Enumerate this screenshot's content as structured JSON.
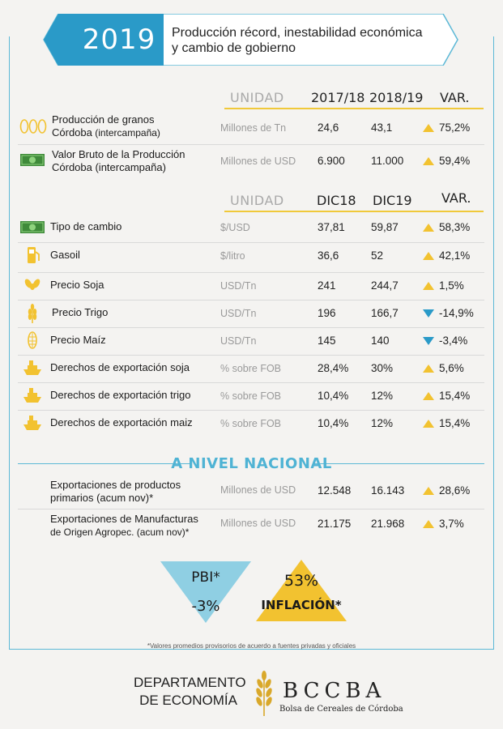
{
  "header": {
    "year": "2019",
    "title_line1": "Producción récord, inestabilidad económica",
    "title_line2": "y cambio de gobierno"
  },
  "table1": {
    "col_unit": "UNIDAD",
    "col_a": "2017/18",
    "col_b": "2018/19",
    "col_var": "VAR.",
    "rows": [
      {
        "icon": "grain-icon",
        "label1": "Producción de granos",
        "label2": "Córdoba",
        "label2_small": " (intercampaña)",
        "unit": "Millones de Tn",
        "a": "24,6",
        "b": "43,1",
        "dir": "up",
        "var": "75,2%"
      },
      {
        "icon": "money-icon",
        "label1": "Valor Bruto de la Producción",
        "label2": "Córdoba (intercampaña)",
        "label2_small": "",
        "unit": "Millones de USD",
        "a": "6.900",
        "b": "11.000",
        "dir": "up",
        "var": "59,4%"
      }
    ]
  },
  "table2": {
    "col_unit": "UNIDAD",
    "col_a": "DIC18",
    "col_b": "DIC19",
    "col_var": "VAR.",
    "rows": [
      {
        "icon": "money-icon",
        "label": "Tipo de cambio",
        "unit": "$/USD",
        "a": "37,81",
        "b": "59,87",
        "dir": "up",
        "var": "58,3%"
      },
      {
        "icon": "fuel-pump-icon",
        "label": "Gasoil",
        "unit": "$/litro",
        "a": "36,6",
        "b": "52",
        "dir": "up",
        "var": "42,1%"
      },
      {
        "icon": "soy-icon",
        "label": "Precio Soja",
        "unit": "USD/Tn",
        "a": "241",
        "b": "244,7",
        "dir": "up",
        "var": "1,5%"
      },
      {
        "icon": "wheat-icon",
        "label": "Precio Trigo",
        "unit": "USD/Tn",
        "a": "196",
        "b": "166,7",
        "dir": "down",
        "var": "-14,9%"
      },
      {
        "icon": "corn-icon",
        "label": "Precio Maíz",
        "unit": "USD/Tn",
        "a": "145",
        "b": "140",
        "dir": "down",
        "var": "-3,4%"
      },
      {
        "icon": "ship-icon",
        "label": "Derechos de exportación soja",
        "unit": "% sobre FOB",
        "a": "28,4%",
        "b": "30%",
        "dir": "up",
        "var": "5,6%"
      },
      {
        "icon": "ship-icon",
        "label": "Derechos de exportación trigo",
        "unit": "% sobre FOB",
        "a": "10,4%",
        "b": "12%",
        "dir": "up",
        "var": "15,4%"
      },
      {
        "icon": "ship-icon",
        "label": "Derechos de exportación maiz",
        "unit": "% sobre FOB",
        "a": "10,4%",
        "b": "12%",
        "dir": "up",
        "var": "15,4%"
      }
    ]
  },
  "national": {
    "title": "A NIVEL NACIONAL",
    "rows": [
      {
        "label1": "Exportaciones de productos",
        "label2": "primarios (acum nov)*",
        "unit": "Millones de USD",
        "a": "12.548",
        "b": "16.143",
        "dir": "up",
        "var": "28,6%"
      },
      {
        "label1": "Exportaciones de Manufacturas",
        "label2": "de Origen Agropec. (acum nov)*",
        "unit": "Millones de USD",
        "a": "21.175",
        "b": "21.968",
        "dir": "up",
        "var": "3,7%"
      }
    ]
  },
  "indicators": {
    "pbi_label": "PBI*",
    "pbi_value": "-3%",
    "inflation_value": "53%",
    "inflation_label": "INFLACIÓN*"
  },
  "footnote": "*Valores promedios provisorios de acuerdo a fuentes privadas y oficiales",
  "footer": {
    "dept_line1": "DEPARTAMENTO",
    "dept_line2": "DE ECONOMÍA",
    "brand": "BCCBA",
    "brand_sub": "Bolsa de Cereales de Córdoba"
  },
  "colors": {
    "blue": "#5cb8d6",
    "yellow": "#f2c230",
    "banner_blue": "#2a9ac8"
  }
}
